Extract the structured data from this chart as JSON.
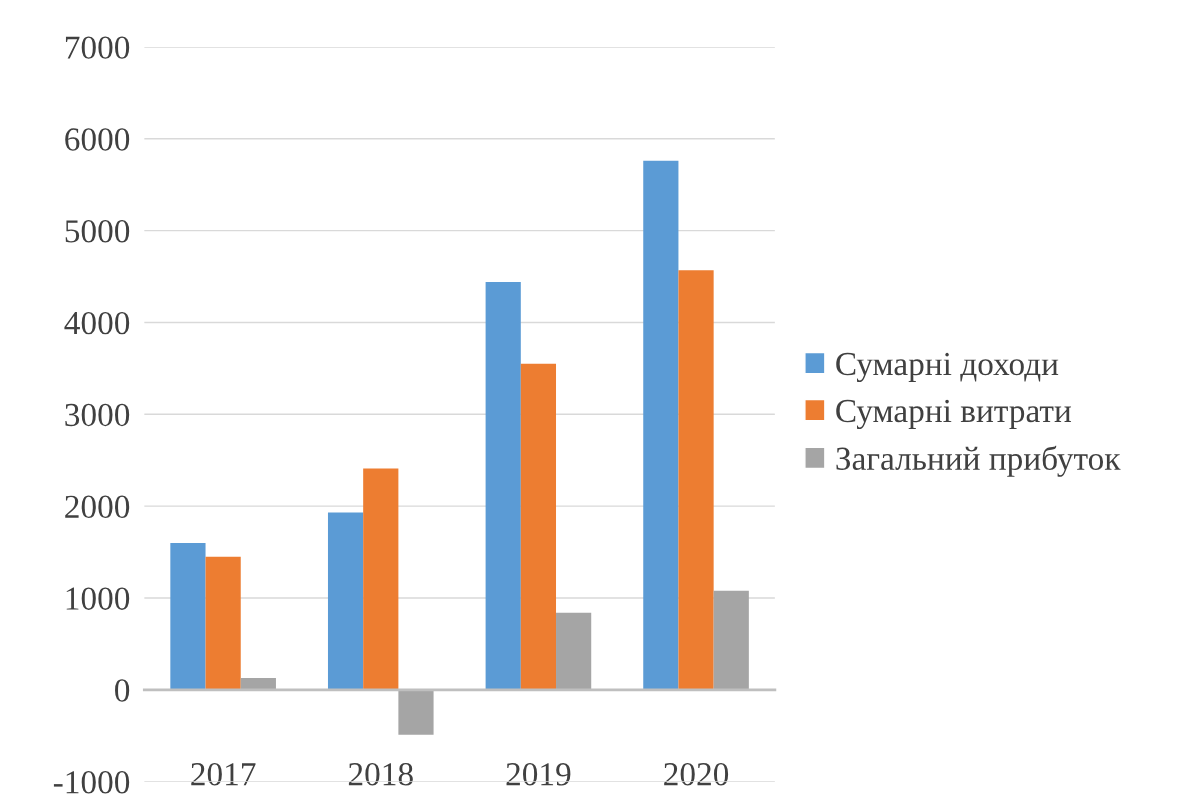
{
  "chart_data": {
    "type": "bar",
    "categories": [
      "2017",
      "2018",
      "2019",
      "2020"
    ],
    "series": [
      {
        "name": "Сумарні доходи",
        "color": "#5b9bd5",
        "values": [
          1600,
          1930,
          4440,
          5760
        ]
      },
      {
        "name": "Сумарні витрати",
        "color": "#ed7d31",
        "values": [
          1450,
          2410,
          3550,
          4570
        ]
      },
      {
        "name": "Загальний прибуток",
        "color": "#a5a5a5",
        "values": [
          130,
          -490,
          840,
          1080
        ]
      }
    ],
    "ylim": [
      -1000,
      7000
    ],
    "yticks": [
      -1000,
      0,
      1000,
      2000,
      3000,
      4000,
      5000,
      6000,
      7000
    ],
    "grid": "y",
    "legend": "right"
  }
}
